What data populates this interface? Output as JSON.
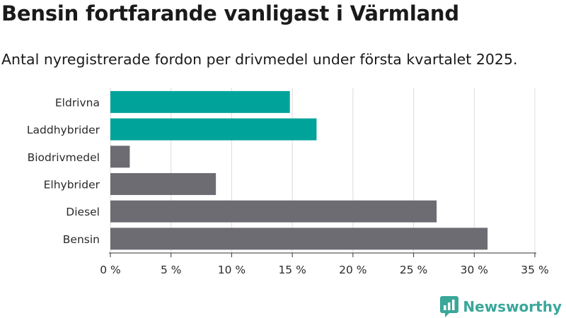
{
  "header": {
    "title": "Bensin fortfarande vanligast i Värmland",
    "subtitle": "Antal nyregistrerade fordon per drivmedel under första kvartalet 2025."
  },
  "brand": {
    "name": "Newsworthy",
    "icon": "bar-chart-logo-icon",
    "color": "#3aa79a"
  },
  "colors": {
    "highlight": "#00a39a",
    "default": "#6d6c72",
    "grid": "#dcdcdc"
  },
  "chart_data": {
    "type": "bar",
    "orientation": "horizontal",
    "categories": [
      "Eldrivna",
      "Laddhybrider",
      "Biodrivmedel",
      "Elhybrider",
      "Diesel",
      "Bensin"
    ],
    "values": [
      14.8,
      17.0,
      1.6,
      8.7,
      26.9,
      31.1
    ],
    "highlighted": [
      true,
      true,
      false,
      false,
      false,
      false
    ],
    "xlim": [
      0,
      35
    ],
    "xticks": [
      0,
      5,
      10,
      15,
      20,
      25,
      30,
      35
    ],
    "tick_suffix": " %",
    "grid": true
  }
}
